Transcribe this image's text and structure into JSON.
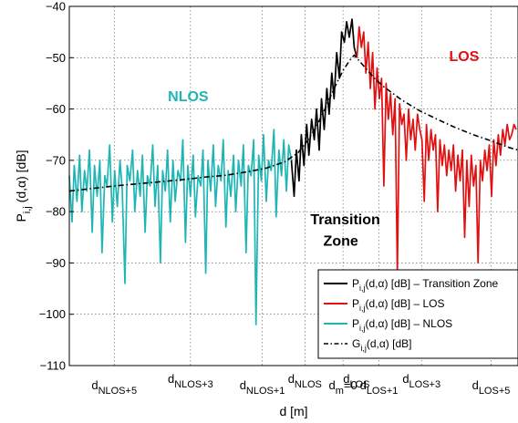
{
  "chart_data": {
    "type": "line",
    "title": "",
    "xlabel": "d [m]",
    "ylabel": "P_{i,j}(d,α) [dB]",
    "ylim": [
      -110,
      -40
    ],
    "yticks": [
      -110,
      -100,
      -90,
      -80,
      -70,
      -60,
      -50,
      -40
    ],
    "ytick_labels": [
      "−110",
      "−100",
      "−90",
      "−80",
      "−70",
      "−60",
      "−50",
      "−40"
    ],
    "xlim": [
      0,
      100
    ],
    "grid": true,
    "x_markers": [
      {
        "main": "d",
        "sub": "NLOS+5",
        "x": 10,
        "row": "low"
      },
      {
        "main": "d",
        "sub": "NLOS+3",
        "x": 27,
        "row": "high"
      },
      {
        "main": "d",
        "sub": "NLOS+1",
        "x": 43,
        "row": "low"
      },
      {
        "main": "d",
        "sub": "NLOS",
        "x": 52.5,
        "row": "high"
      },
      {
        "main": "d",
        "sub": "m",
        "suffix": "=0",
        "x": 61,
        "row": "low"
      },
      {
        "main": "d",
        "sub": "LOS",
        "x": 64,
        "row": "high"
      },
      {
        "main": "d",
        "sub": "LOS+1",
        "x": 69,
        "row": "low"
      },
      {
        "main": "d",
        "sub": "LOS+3",
        "x": 78.5,
        "row": "high"
      },
      {
        "main": "d",
        "sub": "LOS+5",
        "x": 94,
        "row": "low"
      }
    ],
    "annotations": [
      {
        "text": "NLOS",
        "color": "#1fb5b5",
        "x": 26.5,
        "y": -58.5
      },
      {
        "text": "LOS",
        "color": "#e01010",
        "x": 88,
        "y": -50.7
      },
      {
        "text": "Transition",
        "color": "#000000",
        "x": 61.5,
        "y": -82.5
      },
      {
        "text": "Zone",
        "color": "#000000",
        "x": 60.5,
        "y": -86.6
      }
    ],
    "legend": {
      "position": "bottom-right",
      "entries": [
        {
          "label_main": "P",
          "label_sub": "i,j",
          "label_rest": "(d,α) [dB] – Transition Zone",
          "color": "#000000",
          "style": "solid"
        },
        {
          "label_main": "P",
          "label_sub": "i,j",
          "label_rest": "(d,α) [dB] – LOS",
          "color": "#e01010",
          "style": "solid"
        },
        {
          "label_main": "P",
          "label_sub": "i,j",
          "label_rest": "(d,α) [dB] – NLOS",
          "color": "#1fb5b5",
          "style": "solid"
        },
        {
          "label_main": "G",
          "label_sub": "i,j",
          "label_rest": "(d,α) [dB]",
          "color": "#000000",
          "style": "dashdot"
        }
      ]
    },
    "series": [
      {
        "key": "nlos",
        "color": "#1fb5b5",
        "x": [
          0.0,
          0.6,
          1.1,
          1.7,
          2.3,
          2.8,
          3.4,
          3.9,
          4.5,
          5.1,
          5.6,
          6.2,
          6.8,
          7.3,
          7.9,
          8.4,
          9.0,
          9.6,
          10.1,
          10.7,
          11.3,
          11.8,
          12.4,
          12.9,
          13.5,
          14.1,
          14.6,
          15.2,
          15.8,
          16.3,
          16.9,
          17.4,
          18.0,
          18.6,
          19.1,
          19.7,
          20.3,
          20.8,
          21.4,
          21.9,
          22.5,
          23.1,
          23.6,
          24.2,
          24.8,
          25.3,
          25.9,
          26.4,
          27.0,
          27.6,
          28.1,
          28.7,
          29.3,
          29.8,
          30.4,
          30.9,
          31.5,
          32.1,
          32.6,
          33.2,
          33.8,
          34.3,
          34.9,
          35.4,
          36.0,
          36.6,
          37.1,
          37.7,
          38.3,
          38.8,
          39.4,
          39.9,
          40.5,
          41.1,
          41.6,
          42.2,
          42.8,
          43.3,
          43.9,
          44.4,
          45.0,
          45.6,
          46.1,
          46.7,
          47.3,
          47.8,
          48.4,
          48.9,
          49.5
        ],
        "y": [
          -73,
          -82,
          -71,
          -78,
          -69,
          -80,
          -72,
          -76,
          -68,
          -84,
          -71,
          -77,
          -70,
          -88,
          -73,
          -75,
          -67,
          -82,
          -72,
          -79,
          -70,
          -76,
          -94,
          -71,
          -74,
          -68,
          -80,
          -72,
          -77,
          -69,
          -84,
          -73,
          -75,
          -67,
          -79,
          -71,
          -90,
          -72,
          -76,
          -68,
          -82,
          -70,
          -78,
          -72,
          -74,
          -66,
          -86,
          -71,
          -77,
          -69,
          -81,
          -73,
          -75,
          -68,
          -92,
          -70,
          -76,
          -67,
          -79,
          -71,
          -74,
          -66,
          -83,
          -72,
          -77,
          -69,
          -80,
          -70,
          -75,
          -67,
          -88,
          -71,
          -73,
          -66,
          -102,
          -69,
          -74,
          -65,
          -78,
          -70,
          -72,
          -64,
          -81,
          -68,
          -73,
          -66,
          -76,
          -67,
          -70
        ]
      },
      {
        "key": "transition",
        "color": "#000000",
        "x": [
          49.5,
          50.1,
          50.6,
          51.2,
          51.7,
          52.3,
          52.9,
          53.4,
          54.0,
          54.6,
          55.1,
          55.7,
          56.2,
          56.8,
          57.4,
          57.9,
          58.5,
          59.0,
          59.6,
          60.2,
          60.7,
          61.3,
          61.8,
          62.4,
          63.0,
          63.5,
          64.1
        ],
        "y": [
          -70,
          -77,
          -68,
          -74,
          -65,
          -71,
          -63,
          -69,
          -62,
          -66,
          -60,
          -68,
          -58,
          -64,
          -56,
          -61,
          -53,
          -58,
          -49,
          -54,
          -45,
          -47,
          -43,
          -46,
          -42.5,
          -48,
          -50
        ]
      },
      {
        "key": "los",
        "color": "#e01010",
        "x": [
          64.1,
          64.6,
          65.1,
          65.6,
          66.1,
          66.6,
          67.1,
          67.6,
          68.1,
          68.6,
          69.1,
          69.6,
          70.1,
          70.6,
          71.1,
          71.6,
          72.1,
          72.6,
          73.1,
          73.6,
          74.1,
          74.6,
          75.1,
          75.6,
          76.1,
          76.6,
          77.1,
          77.6,
          78.1,
          78.6,
          79.1,
          79.6,
          80.1,
          80.6,
          81.1,
          81.6,
          82.1,
          82.6,
          83.1,
          83.6,
          84.1,
          84.6,
          85.1,
          85.6,
          86.1,
          86.6,
          87.1,
          87.6,
          88.1,
          88.6,
          89.1,
          89.6,
          90.1,
          90.6,
          91.1,
          91.6,
          92.1,
          92.6,
          93.1,
          93.6,
          94.1,
          94.6,
          95.1,
          95.6,
          96.1,
          96.6,
          97.1,
          97.6,
          98.1,
          98.6,
          99.1,
          99.6
        ],
        "y": [
          -50,
          -44,
          -48,
          -45,
          -53,
          -47,
          -56,
          -49,
          -60,
          -52,
          -58,
          -54,
          -75,
          -55,
          -62,
          -57,
          -65,
          -58,
          -92,
          -59,
          -63,
          -61,
          -70,
          -60,
          -66,
          -62,
          -68,
          -61,
          -64,
          -66,
          -78,
          -63,
          -70,
          -64,
          -68,
          -65,
          -80,
          -66,
          -71,
          -67,
          -73,
          -68,
          -72,
          -67,
          -76,
          -69,
          -74,
          -68,
          -85,
          -70,
          -79,
          -69,
          -75,
          -71,
          -90,
          -70,
          -74,
          -68,
          -72,
          -67,
          -77,
          -66,
          -71,
          -65,
          -69,
          -64,
          -67,
          -63,
          -66,
          -65,
          -63,
          -64
        ]
      },
      {
        "key": "envelope",
        "color": "#000000",
        "style": "dashdot",
        "x": [
          0,
          5,
          10,
          15,
          20,
          25,
          30,
          35,
          40,
          44,
          48,
          51,
          53,
          55,
          57,
          59,
          61,
          62.5,
          63.5,
          64.5,
          66,
          68,
          70,
          74,
          78,
          82,
          86,
          90,
          94,
          98,
          100
        ],
        "y": [
          -76,
          -75.5,
          -75,
          -74.6,
          -74.2,
          -73.8,
          -73.3,
          -72.9,
          -72.2,
          -71.5,
          -70.3,
          -68.5,
          -66.3,
          -63.5,
          -60,
          -56,
          -52.5,
          -50.5,
          -49.5,
          -50.5,
          -52,
          -54,
          -55.6,
          -58.2,
          -60.3,
          -62,
          -63.6,
          -65,
          -66.2,
          -67.5,
          -68
        ]
      }
    ]
  }
}
